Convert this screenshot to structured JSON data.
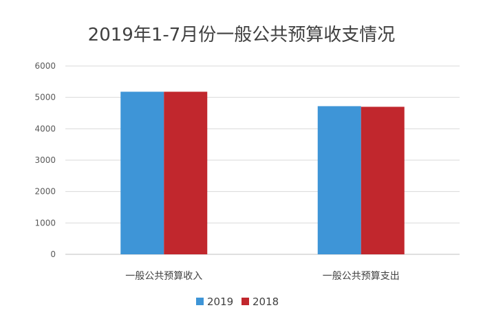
{
  "chart_data": {
    "type": "bar",
    "title": "2019年1-7月份一般公共预算收支情况",
    "categories": [
      "一般公共预算收入",
      "一般公共预算支出"
    ],
    "series": [
      {
        "name": "2019",
        "values": [
          5180,
          4720
        ],
        "color": "#3E95D7"
      },
      {
        "name": "2018",
        "values": [
          5180,
          4700
        ],
        "color": "#C1272D"
      }
    ],
    "ylim": [
      0,
      6000
    ],
    "yticks": [
      "0",
      "1000",
      "2000",
      "3000",
      "4000",
      "5000",
      "6000"
    ],
    "grid": true,
    "legend_position": "bottom"
  }
}
